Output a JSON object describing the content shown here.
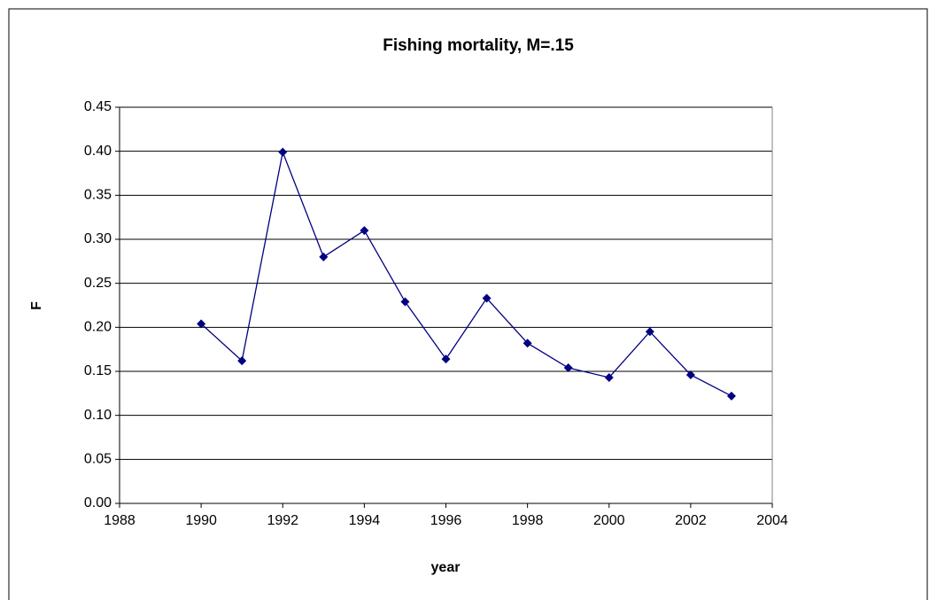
{
  "chart_data": {
    "type": "line",
    "title": "Fishing mortality, M=.15",
    "x_label": "year",
    "y_label": "F",
    "series": [
      {
        "name": "F",
        "color": "#000080",
        "x": [
          1990,
          1991,
          1992,
          1993,
          1994,
          1995,
          1996,
          1997,
          1998,
          1999,
          2000,
          2001,
          2002,
          2003
        ],
        "values": [
          0.204,
          0.162,
          0.399,
          0.28,
          0.31,
          0.229,
          0.164,
          0.233,
          0.182,
          0.154,
          0.143,
          0.195,
          0.146,
          0.122
        ]
      }
    ],
    "xlim": [
      1988,
      2004
    ],
    "xticks": [
      1988,
      1990,
      1992,
      1994,
      1996,
      1998,
      2000,
      2002,
      2004
    ],
    "ylim": [
      0,
      0.45
    ],
    "yticks": [
      {
        "value": 0,
        "label": "0.00"
      },
      0.05,
      {
        "value": 0.1,
        "label": "0.10"
      },
      0.15,
      {
        "value": 0.2,
        "label": "0.20"
      },
      0.25,
      {
        "value": 0.3,
        "label": "0.30"
      },
      0.35,
      {
        "value": 0.4,
        "label": "0.40"
      },
      0.45
    ],
    "grid": true
  }
}
